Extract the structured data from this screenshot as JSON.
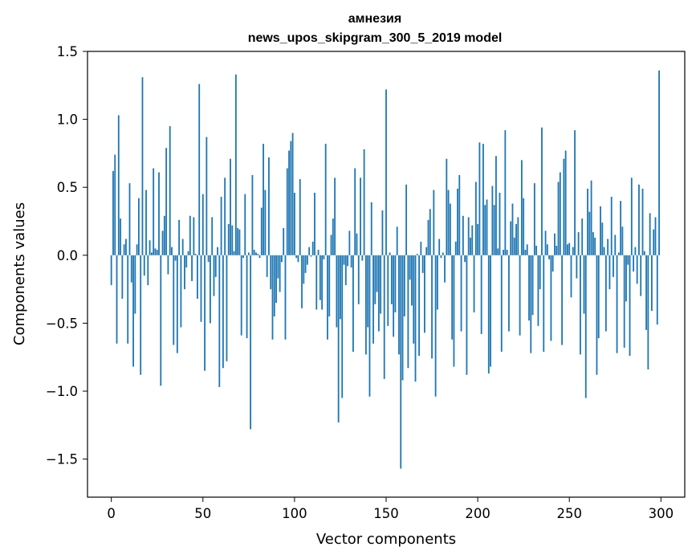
{
  "chart_data": {
    "type": "bar",
    "title": "амнезия",
    "subtitle": "news_upos_skipgram_300_5_2019 model",
    "xlabel": "Vector components",
    "ylabel": "Components values",
    "xlim": [
      -13,
      313
    ],
    "ylim": [
      -1.78,
      1.5
    ],
    "x_ticks": [
      0,
      50,
      100,
      150,
      200,
      250,
      300
    ],
    "x_tick_labels": [
      "0",
      "50",
      "100",
      "150",
      "200",
      "250",
      "300"
    ],
    "y_ticks": [
      1.5,
      1.0,
      0.5,
      0.0,
      -0.5,
      -1.0,
      -1.5
    ],
    "y_tick_labels": [
      "1.5",
      "1.0",
      "0.5",
      "0.0",
      "−0.5",
      "−1.0",
      "−1.5"
    ],
    "bar_color": "#1f77b4",
    "grid": false,
    "values": [
      -0.22,
      0.62,
      0.74,
      -0.65,
      1.03,
      0.27,
      -0.32,
      0.08,
      0.12,
      -0.65,
      0.53,
      -0.2,
      -0.82,
      -0.43,
      0.08,
      0.42,
      -0.88,
      1.31,
      -0.15,
      0.48,
      -0.22,
      0.11,
      0.02,
      0.64,
      0.05,
      0.04,
      0.61,
      -0.96,
      0.18,
      0.29,
      0.79,
      -0.14,
      0.95,
      0.06,
      -0.66,
      -0.04,
      -0.72,
      0.26,
      -0.53,
      0.12,
      -0.25,
      -0.09,
      0.03,
      0.29,
      -0.19,
      0.28,
      0.01,
      -0.32,
      1.26,
      -0.49,
      0.45,
      -0.85,
      0.87,
      -0.05,
      -0.5,
      0.28,
      -0.3,
      -0.16,
      0.06,
      -0.97,
      0.43,
      -0.83,
      0.57,
      -0.78,
      0.23,
      0.71,
      0.22,
      0.03,
      1.33,
      0.2,
      0.19,
      -0.59,
      -0.02,
      0.45,
      -0.61,
      0.02,
      -1.28,
      0.59,
      0.04,
      0.02,
      0.01,
      -0.02,
      0.35,
      0.82,
      0.48,
      -0.16,
      0.72,
      -0.25,
      -0.62,
      -0.45,
      -0.35,
      -0.17,
      -0.27,
      -0.05,
      0.2,
      -0.62,
      0.64,
      0.77,
      0.84,
      0.9,
      0.46,
      -0.02,
      -0.05,
      0.56,
      -0.39,
      -0.21,
      -0.13,
      -0.07,
      0.06,
      -0.01,
      0.1,
      0.46,
      -0.4,
      0.04,
      -0.33,
      -0.4,
      -0.03,
      0.82,
      -0.62,
      -0.45,
      0.15,
      0.27,
      0.57,
      -0.53,
      -1.23,
      -0.47,
      -1.05,
      -0.07,
      -0.22,
      -0.08,
      0.18,
      -0.09,
      -0.71,
      0.64,
      0.16,
      -0.36,
      0.57,
      -0.04,
      0.78,
      -0.73,
      -0.53,
      -1.04,
      0.39,
      -0.65,
      -0.36,
      -0.27,
      -0.56,
      -0.43,
      0.33,
      -0.91,
      1.22,
      -0.52,
      0.02,
      -0.36,
      -0.6,
      -0.42,
      0.21,
      -0.73,
      -1.57,
      -0.92,
      -0.45,
      0.52,
      -0.83,
      -0.18,
      -0.37,
      -0.65,
      -0.93,
      0.01,
      -0.74,
      0.1,
      -0.13,
      -0.57,
      0.06,
      0.26,
      0.34,
      -0.76,
      0.48,
      -1.04,
      -0.4,
      0.12,
      -0.02,
      0.02,
      -0.2,
      0.71,
      0.48,
      0.38,
      -0.62,
      -0.82,
      0.1,
      0.49,
      0.59,
      -0.56,
      0.29,
      -0.05,
      -0.88,
      0.28,
      0.13,
      0.22,
      -0.42,
      0.54,
      0.23,
      0.83,
      -0.58,
      0.82,
      0.37,
      0.41,
      -0.87,
      -0.82,
      0.51,
      0.37,
      0.73,
      0.05,
      0.46,
      -0.71,
      0.04,
      0.92,
      0.04,
      -0.56,
      0.25,
      0.38,
      0.13,
      0.23,
      0.28,
      -0.59,
      0.7,
      0.42,
      0.04,
      0.08,
      -0.48,
      -0.72,
      -0.44,
      0.53,
      0.07,
      -0.52,
      -0.25,
      0.94,
      -0.71,
      0.18,
      0.08,
      -0.03,
      -0.63,
      -0.12,
      0.16,
      0.07,
      0.54,
      0.61,
      -0.66,
      0.71,
      0.77,
      0.08,
      0.09,
      -0.31,
      0.06,
      0.92,
      -0.17,
      0.17,
      -0.73,
      0.27,
      -0.43,
      -1.05,
      0.49,
      0.32,
      0.55,
      0.17,
      0.13,
      -0.88,
      -0.61,
      0.36,
      0.24,
      0.06,
      -0.56,
      0.12,
      -0.25,
      0.43,
      -0.16,
      0.15,
      -0.72,
      0.02,
      0.4,
      0.21,
      -0.68,
      -0.34,
      -0.07,
      -0.74,
      0.57,
      -0.12,
      0.06,
      -0.21,
      0.52,
      -0.3,
      0.49,
      0.03,
      -0.55,
      -0.84,
      0.31,
      -0.41,
      0.19,
      0.28,
      -0.51,
      1.36
    ]
  }
}
